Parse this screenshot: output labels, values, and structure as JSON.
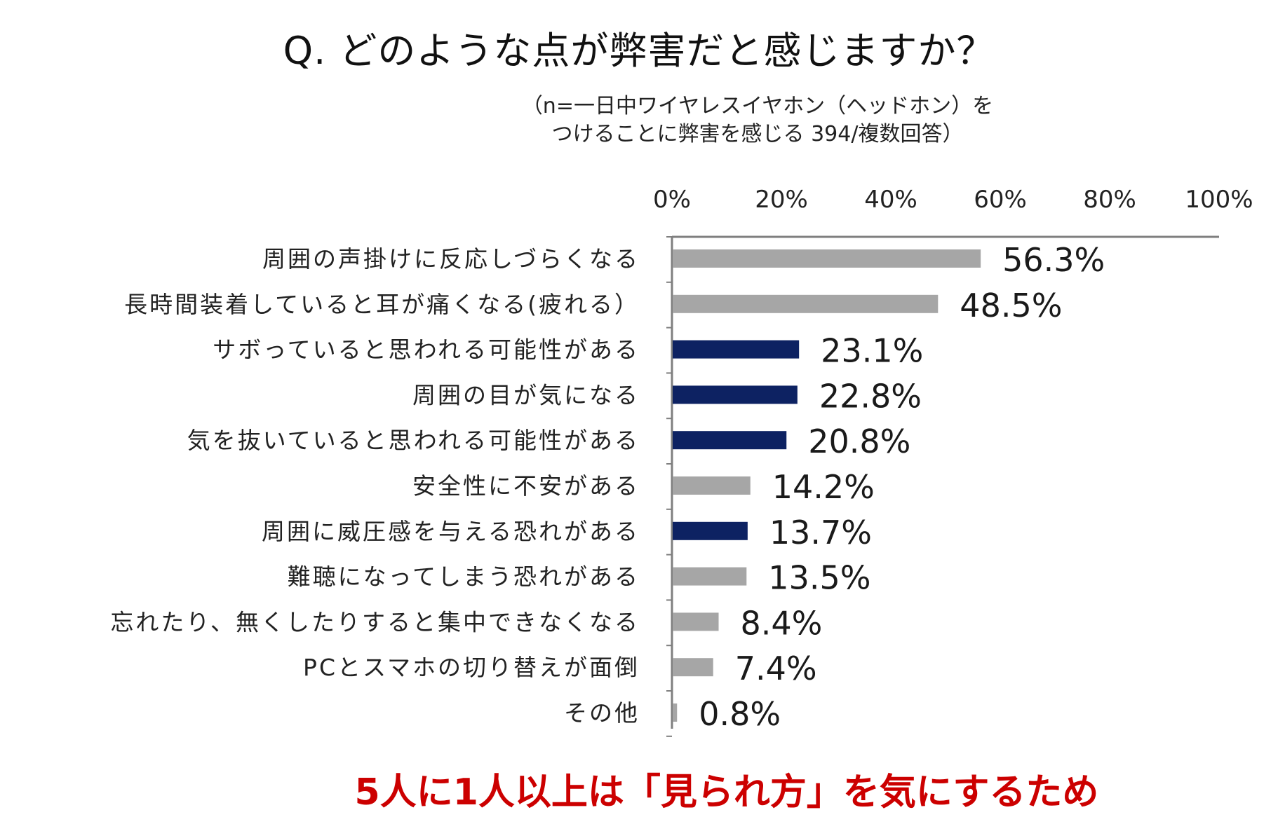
{
  "title": "Q. どのような点が弊害だと感じますか？",
  "subtitle": {
    "line1": "（n=一日中ワイヤレスイヤホン（ヘッドホン）を",
    "line2": "つけることに弊害を感じる 394/複数回答）"
  },
  "footnote": "5人に1人以上は「見られ方」を気にするため",
  "colors": {
    "gray": "#a6a6a6",
    "navy": "#0d2262",
    "axis": "#7f7f7f"
  },
  "chart_data": {
    "type": "bar",
    "orientation": "horizontal",
    "xlim": [
      0,
      100
    ],
    "x_ticks": [
      "0%",
      "20%",
      "40%",
      "60%",
      "80%",
      "100%"
    ],
    "categories": [
      "周囲の声掛けに反応しづらくなる",
      "長時間装着していると耳が痛くなる(疲れる）",
      "サボっていると思われる可能性がある",
      "周囲の目が気になる",
      "気を抜いていると思われる可能性がある",
      "安全性に不安がある",
      "周囲に威圧感を与える恐れがある",
      "難聴になってしまう恐れがある",
      "忘れたり、無くしたりすると集中できなくなる",
      "PCとスマホの切り替えが面倒",
      "その他"
    ],
    "values": [
      56.3,
      48.5,
      23.1,
      22.8,
      20.8,
      14.2,
      13.7,
      13.5,
      8.4,
      7.4,
      0.8
    ],
    "value_labels": [
      "56.3%",
      "48.5%",
      "23.1%",
      "22.8%",
      "20.8%",
      "14.2%",
      "13.7%",
      "13.5%",
      "8.4%",
      "7.4%",
      "0.8%"
    ],
    "highlighted": [
      false,
      false,
      true,
      true,
      true,
      false,
      true,
      false,
      false,
      false,
      false
    ]
  }
}
